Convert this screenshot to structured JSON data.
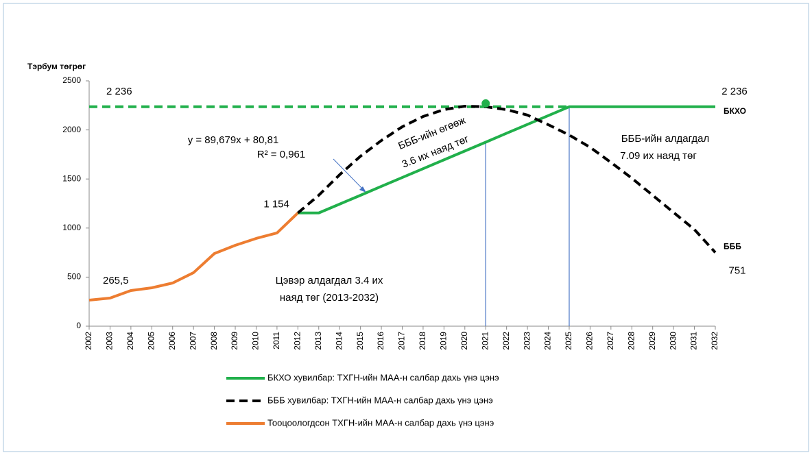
{
  "chart_data": {
    "type": "line",
    "y_label": "Тэрбум төгрөг",
    "categories": [
      "2002",
      "2003",
      "2004",
      "2005",
      "2006",
      "2007",
      "2008",
      "2009",
      "2010",
      "2011",
      "2012",
      "2013",
      "2014",
      "2015",
      "2016",
      "2017",
      "2018",
      "2019",
      "2020",
      "2021",
      "2022",
      "2023",
      "2024",
      "2025",
      "2026",
      "2027",
      "2028",
      "2029",
      "2030",
      "2031",
      "2032"
    ],
    "ylim": [
      0,
      2500
    ],
    "yticks": [
      0,
      500,
      1000,
      1500,
      2000,
      2500
    ],
    "series": [
      {
        "name": "БКХО хувилбар: ТХГН-ийн МАА-н салбар дахь үнэ цэнэ",
        "color": "#21b04b",
        "dash": false,
        "end_label": "БКХО",
        "values": [
          null,
          null,
          null,
          null,
          null,
          null,
          null,
          null,
          null,
          null,
          1154,
          1154,
          1244,
          1334,
          1425,
          1515,
          1605,
          1695,
          1785,
          1875,
          1966,
          2056,
          2146,
          2236,
          2236,
          2236,
          2236,
          2236,
          2236,
          2236,
          2236
        ],
        "value_labels": [
          null,
          null,
          null,
          null,
          null,
          null,
          null,
          null,
          null,
          null,
          null,
          null,
          null,
          null,
          null,
          null,
          null,
          null,
          null,
          null,
          null,
          null,
          null,
          null,
          null,
          null,
          null,
          null,
          null,
          null,
          "2 236"
        ]
      },
      {
        "name": "БББ хувилбар: ТХГН-ийн МАА-н салбар дахь үнэ цэнэ",
        "color": "#000000",
        "dash": true,
        "end_label": "БББ",
        "values": [
          null,
          null,
          null,
          null,
          null,
          null,
          null,
          null,
          null,
          null,
          1154,
          1334,
          1543,
          1732,
          1892,
          2032,
          2137,
          2207,
          2242,
          2236,
          2207,
          2151,
          2053,
          1948,
          1823,
          1669,
          1508,
          1334,
          1159,
          985,
          751
        ],
        "value_labels": [
          null,
          null,
          null,
          null,
          null,
          null,
          null,
          null,
          null,
          null,
          null,
          null,
          null,
          null,
          null,
          null,
          null,
          null,
          null,
          null,
          null,
          null,
          null,
          null,
          null,
          null,
          null,
          null,
          null,
          null,
          "751"
        ]
      },
      {
        "name": "Тооцоологдсон ТХГН-ийн МАА-н салбар дахь үнэ цэнэ",
        "color": "#ed7d31",
        "dash": false,
        "values": [
          265.5,
          286,
          363,
          391,
          440,
          545,
          740,
          824,
          894,
          950,
          1154,
          null,
          null,
          null,
          null,
          null,
          null,
          null,
          null,
          null,
          null,
          null,
          null,
          null,
          null,
          null,
          null,
          null,
          null,
          null,
          null
        ],
        "value_labels": [
          "265,5",
          null,
          null,
          null,
          null,
          null,
          null,
          null,
          null,
          null,
          "1 154",
          null,
          null,
          null,
          null,
          null,
          null,
          null,
          null,
          null,
          null,
          null,
          null,
          null,
          null,
          null,
          null,
          null,
          null,
          null,
          null
        ]
      }
    ],
    "reference_line": {
      "value": 2236,
      "label": "2 236",
      "color": "#21b04b"
    },
    "peak_marker": {
      "value": 2270,
      "category": "2021",
      "color": "#21b04b"
    },
    "vlines": [
      "2021",
      "2025"
    ],
    "vline_color": "#4472c4",
    "annotations": [
      "y = 89,679x + 80,81",
      "R² = 0,961",
      "БББ-ийн өгөөж",
      "3.6 их наяд төг",
      "БББ-ийн алдагдал",
      "7.09 их наяд төг",
      "Цэвэр алдагдал 3.4 их",
      "наяд төг (2013-2032)"
    ]
  }
}
